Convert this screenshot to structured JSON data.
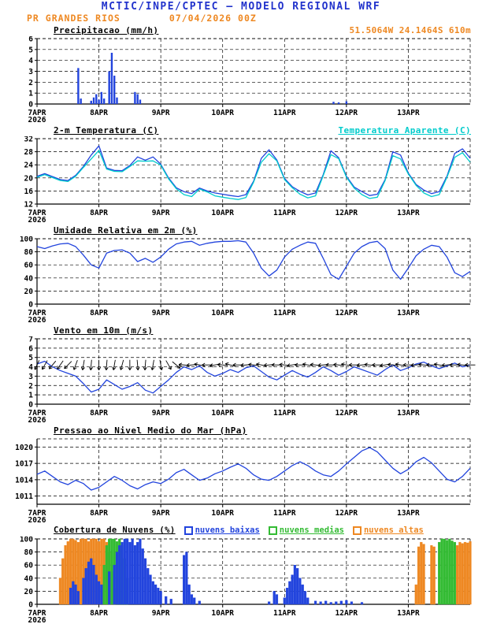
{
  "header": {
    "title": "MCTIC/INPE/CPTEC — MODELO REGIONAL WRF",
    "station": "PR GRANDES RIOS",
    "run_datetime": "07/04/2026 00Z",
    "location": "51.5064W 24.1464S 610m"
  },
  "colors": {
    "header_blue": "#2233cc",
    "orange": "#ee8822",
    "line_blue": "#2244dd",
    "cyan": "#00cccc",
    "green": "#33bb33",
    "black": "#000000"
  },
  "x_axis": {
    "t_max": 168,
    "unit": "hours from 07APR2026 00Z",
    "ticks": [
      {
        "t": 0,
        "label": "7APR",
        "sub": "2026"
      },
      {
        "t": 24,
        "label": "8APR"
      },
      {
        "t": 48,
        "label": "9APR"
      },
      {
        "t": 72,
        "label": "10APR"
      },
      {
        "t": 96,
        "label": "11APR"
      },
      {
        "t": 120,
        "label": "12APR"
      },
      {
        "t": 144,
        "label": "13APR"
      }
    ]
  },
  "chart_data": [
    {
      "id": "precipitation",
      "type": "bar",
      "title": "Precipitacao (mm/h)",
      "ylim": [
        0,
        6
      ],
      "yticks": [
        0,
        1,
        2,
        3,
        4,
        5,
        6
      ],
      "bar_color": "#2244dd",
      "bars": [
        [
          16,
          3.3
        ],
        [
          17,
          0.5
        ],
        [
          21,
          0.3
        ],
        [
          22,
          0.6
        ],
        [
          23,
          0.9
        ],
        [
          24,
          0.4
        ],
        [
          25,
          1.1
        ],
        [
          26,
          0.5
        ],
        [
          28,
          3.0
        ],
        [
          29,
          4.7
        ],
        [
          30,
          2.6
        ],
        [
          31,
          0.6
        ],
        [
          38,
          1.1
        ],
        [
          39,
          0.9
        ],
        [
          40,
          0.4
        ],
        [
          115,
          0.2
        ],
        [
          117,
          0.15
        ],
        [
          120,
          0.25
        ]
      ]
    },
    {
      "id": "temperature",
      "type": "line",
      "title": "2-m Temperatura (C)",
      "right_label": "Temperatura Aparente (C)",
      "ylim": [
        12,
        32
      ],
      "yticks": [
        12,
        16,
        20,
        24,
        28,
        32
      ],
      "x_step": 3,
      "series": [
        {
          "name": "2-m Temperatura (C)",
          "color": "#2244dd",
          "values": [
            20.5,
            21.3,
            20.4,
            19.5,
            19.2,
            20.8,
            23.5,
            27.0,
            29.8,
            23.0,
            22.3,
            22.2,
            23.8,
            26.4,
            25.4,
            26.4,
            24.2,
            20.0,
            17.0,
            15.8,
            15.2,
            16.9,
            16.0,
            15.4,
            15.0,
            14.6,
            14.3,
            14.9,
            19.0,
            26.0,
            28.6,
            25.5,
            19.8,
            17.3,
            15.9,
            14.8,
            15.4,
            21.0,
            28.3,
            26.2,
            20.5,
            17.2,
            15.8,
            14.6,
            15.0,
            19.5,
            28.0,
            27.0,
            21.5,
            18.0,
            16.3,
            15.2,
            15.8,
            20.5,
            27.5,
            28.9,
            26.0
          ]
        },
        {
          "name": "Temperatura Aparente (C)",
          "color": "#00cccc",
          "values": [
            20.2,
            21.0,
            20.1,
            19.2,
            18.9,
            20.5,
            23.2,
            25.8,
            28.4,
            22.7,
            22.0,
            21.9,
            23.5,
            25.2,
            25.1,
            25.2,
            23.9,
            19.7,
            16.7,
            14.9,
            14.3,
            16.6,
            15.7,
            14.5,
            14.1,
            13.7,
            13.4,
            14.0,
            18.7,
            24.8,
            27.4,
            25.2,
            19.5,
            17.0,
            15.0,
            13.9,
            14.5,
            20.7,
            27.1,
            25.9,
            20.2,
            16.9,
            14.9,
            13.7,
            14.1,
            19.2,
            26.8,
            25.8,
            21.2,
            17.7,
            15.4,
            14.3,
            14.9,
            20.2,
            26.3,
            27.7,
            24.8
          ]
        }
      ]
    },
    {
      "id": "humidity",
      "type": "line",
      "title": "Umidade Relativa em 2m (%)",
      "ylim": [
        0,
        100
      ],
      "yticks": [
        0,
        20,
        40,
        60,
        80,
        100
      ],
      "x_step": 3,
      "series": [
        {
          "name": "Umidade Relativa em 2m (%)",
          "color": "#2244dd",
          "values": [
            88,
            85,
            89,
            92,
            93,
            88,
            75,
            60,
            55,
            78,
            82,
            83,
            78,
            65,
            70,
            64,
            72,
            84,
            92,
            95,
            96,
            90,
            93,
            95,
            96,
            96,
            97,
            95,
            78,
            55,
            43,
            52,
            72,
            84,
            90,
            95,
            93,
            70,
            45,
            38,
            58,
            78,
            88,
            94,
            96,
            85,
            52,
            38,
            55,
            74,
            84,
            90,
            88,
            72,
            48,
            42,
            50
          ]
        }
      ]
    },
    {
      "id": "wind",
      "type": "line",
      "title": "Vento em 10m (m/s)",
      "ylim": [
        0,
        7
      ],
      "yticks": [
        0,
        1,
        2,
        3,
        4,
        5,
        6,
        7
      ],
      "x_step": 3,
      "series": [
        {
          "name": "Vento em 10m (m/s)",
          "color": "#2244dd",
          "values": [
            4.3,
            4.6,
            4.0,
            3.6,
            3.3,
            3.0,
            2.2,
            1.3,
            1.6,
            2.6,
            2.1,
            1.6,
            1.9,
            2.3,
            1.5,
            1.2,
            1.9,
            2.6,
            3.4,
            4.0,
            3.7,
            4.1,
            3.4,
            3.0,
            3.3,
            3.7,
            3.4,
            3.9,
            4.1,
            3.5,
            2.9,
            2.6,
            3.1,
            3.6,
            3.2,
            2.9,
            3.4,
            4.0,
            3.6,
            3.1,
            3.5,
            4.0,
            3.7,
            3.4,
            3.1,
            3.7,
            4.2,
            3.6,
            3.9,
            4.3,
            4.5,
            4.1,
            3.8,
            4.1,
            4.4,
            4.0,
            4.2
          ]
        }
      ],
      "arrows": {
        "t_step": 3,
        "level": 4.2,
        "length": 13,
        "angles_deg": [
          115,
          120,
          130,
          125,
          135,
          110,
          100,
          95,
          90,
          95,
          100,
          105,
          90,
          85,
          95,
          100,
          80,
          60,
          40,
          185,
          175,
          190,
          180,
          170,
          185,
          195,
          180,
          175,
          185,
          190,
          175,
          180,
          185,
          170,
          180,
          190,
          185,
          175,
          180,
          185,
          190,
          180,
          175,
          185,
          180,
          170,
          185,
          190,
          180,
          175,
          185,
          180,
          190,
          175,
          180,
          185,
          180
        ]
      }
    },
    {
      "id": "pressure",
      "type": "line",
      "title": "Pressao ao Nivel Medio do Mar (hPa)",
      "ylim": [
        1009.5,
        1021.5
      ],
      "yticks": [
        1011,
        1014,
        1017,
        1020
      ],
      "x_step": 3,
      "series": [
        {
          "name": "Pressao ao Nivel Medio do Mar (hPa)",
          "color": "#2244dd",
          "values": [
            1015.0,
            1015.6,
            1014.6,
            1013.6,
            1013.1,
            1013.9,
            1013.3,
            1012.1,
            1012.6,
            1013.6,
            1014.6,
            1013.9,
            1012.9,
            1012.3,
            1013.1,
            1013.6,
            1013.3,
            1014.1,
            1015.3,
            1015.9,
            1014.9,
            1013.9,
            1014.3,
            1015.1,
            1015.6,
            1016.3,
            1016.9,
            1016.1,
            1014.9,
            1014.1,
            1013.9,
            1014.6,
            1015.6,
            1016.6,
            1017.3,
            1016.6,
            1015.6,
            1014.9,
            1014.6,
            1015.6,
            1016.9,
            1018.1,
            1019.3,
            1019.9,
            1019.1,
            1017.6,
            1016.1,
            1015.1,
            1015.9,
            1017.3,
            1018.1,
            1017.1,
            1015.6,
            1014.1,
            1013.6,
            1014.6,
            1016.1
          ]
        }
      ]
    },
    {
      "id": "clouds",
      "type": "bar-multi",
      "title": "Cobertura de Nuvens (%)",
      "ylim": [
        0,
        100
      ],
      "yticks": [
        0,
        20,
        40,
        60,
        80,
        100
      ],
      "legend": [
        {
          "label": "nuvens baixas",
          "color": "#2244dd"
        },
        {
          "label": "nuvens medias",
          "color": "#33bb33"
        },
        {
          "label": "nuvens altas",
          "color": "#ee8822"
        }
      ],
      "series": [
        {
          "name": "nuvens altas",
          "color": "#ee8822",
          "bars": [
            [
              9,
              40
            ],
            [
              10,
              70
            ],
            [
              11,
              90
            ],
            [
              12,
              96
            ],
            [
              13,
              100
            ],
            [
              14,
              100
            ],
            [
              15,
              98
            ],
            [
              16,
              95
            ],
            [
              17,
              100
            ],
            [
              18,
              100
            ],
            [
              19,
              100
            ],
            [
              20,
              96
            ],
            [
              21,
              100
            ],
            [
              22,
              100
            ],
            [
              23,
              100
            ],
            [
              24,
              96
            ],
            [
              25,
              100
            ],
            [
              26,
              100
            ],
            [
              27,
              95
            ],
            [
              28,
              80
            ],
            [
              29,
              50
            ],
            [
              30,
              25
            ],
            [
              147,
              30
            ],
            [
              148,
              88
            ],
            [
              149,
              95
            ],
            [
              150,
              92
            ],
            [
              153,
              90
            ],
            [
              154,
              88
            ],
            [
              163,
              90
            ],
            [
              164,
              95
            ],
            [
              165,
              93
            ],
            [
              166,
              95
            ],
            [
              167,
              94
            ],
            [
              168,
              96
            ]
          ]
        },
        {
          "name": "nuvens medias",
          "color": "#33bb33",
          "bars": [
            [
              26,
              60
            ],
            [
              27,
              90
            ],
            [
              28,
              100
            ],
            [
              29,
              100
            ],
            [
              30,
              100
            ],
            [
              31,
              96
            ],
            [
              32,
              100
            ],
            [
              33,
              90
            ],
            [
              34,
              70
            ],
            [
              35,
              40
            ],
            [
              156,
              95
            ],
            [
              157,
              100
            ],
            [
              158,
              100
            ],
            [
              159,
              98
            ],
            [
              160,
              100
            ],
            [
              161,
              97
            ],
            [
              162,
              95
            ]
          ]
        },
        {
          "name": "nuvens baixas",
          "color": "#2244dd",
          "bars": [
            [
              13,
              25
            ],
            [
              14,
              35
            ],
            [
              15,
              30
            ],
            [
              16,
              20
            ],
            [
              18,
              40
            ],
            [
              19,
              55
            ],
            [
              20,
              65
            ],
            [
              21,
              70
            ],
            [
              22,
              60
            ],
            [
              23,
              45
            ],
            [
              24,
              35
            ],
            [
              25,
              30
            ],
            [
              28,
              50
            ],
            [
              30,
              60
            ],
            [
              31,
              80
            ],
            [
              32,
              90
            ],
            [
              33,
              95
            ],
            [
              34,
              100
            ],
            [
              35,
              100
            ],
            [
              36,
              95
            ],
            [
              37,
              100
            ],
            [
              38,
              90
            ],
            [
              39,
              95
            ],
            [
              40,
              100
            ],
            [
              41,
              85
            ],
            [
              42,
              70
            ],
            [
              43,
              55
            ],
            [
              44,
              45
            ],
            [
              45,
              35
            ],
            [
              46,
              30
            ],
            [
              47,
              25
            ],
            [
              48,
              20
            ],
            [
              50,
              12
            ],
            [
              52,
              8
            ],
            [
              57,
              75
            ],
            [
              58,
              80
            ],
            [
              59,
              30
            ],
            [
              60,
              15
            ],
            [
              61,
              10
            ],
            [
              63,
              5
            ],
            [
              90,
              4
            ],
            [
              92,
              20
            ],
            [
              93,
              15
            ],
            [
              96,
              10
            ],
            [
              97,
              25
            ],
            [
              98,
              35
            ],
            [
              99,
              45
            ],
            [
              100,
              60
            ],
            [
              101,
              55
            ],
            [
              102,
              40
            ],
            [
              103,
              30
            ],
            [
              104,
              20
            ],
            [
              105,
              10
            ],
            [
              108,
              5
            ],
            [
              110,
              4
            ],
            [
              112,
              5
            ],
            [
              114,
              3
            ],
            [
              116,
              4
            ],
            [
              118,
              5
            ],
            [
              120,
              6
            ],
            [
              122,
              4
            ],
            [
              126,
              3
            ]
          ]
        }
      ]
    }
  ]
}
